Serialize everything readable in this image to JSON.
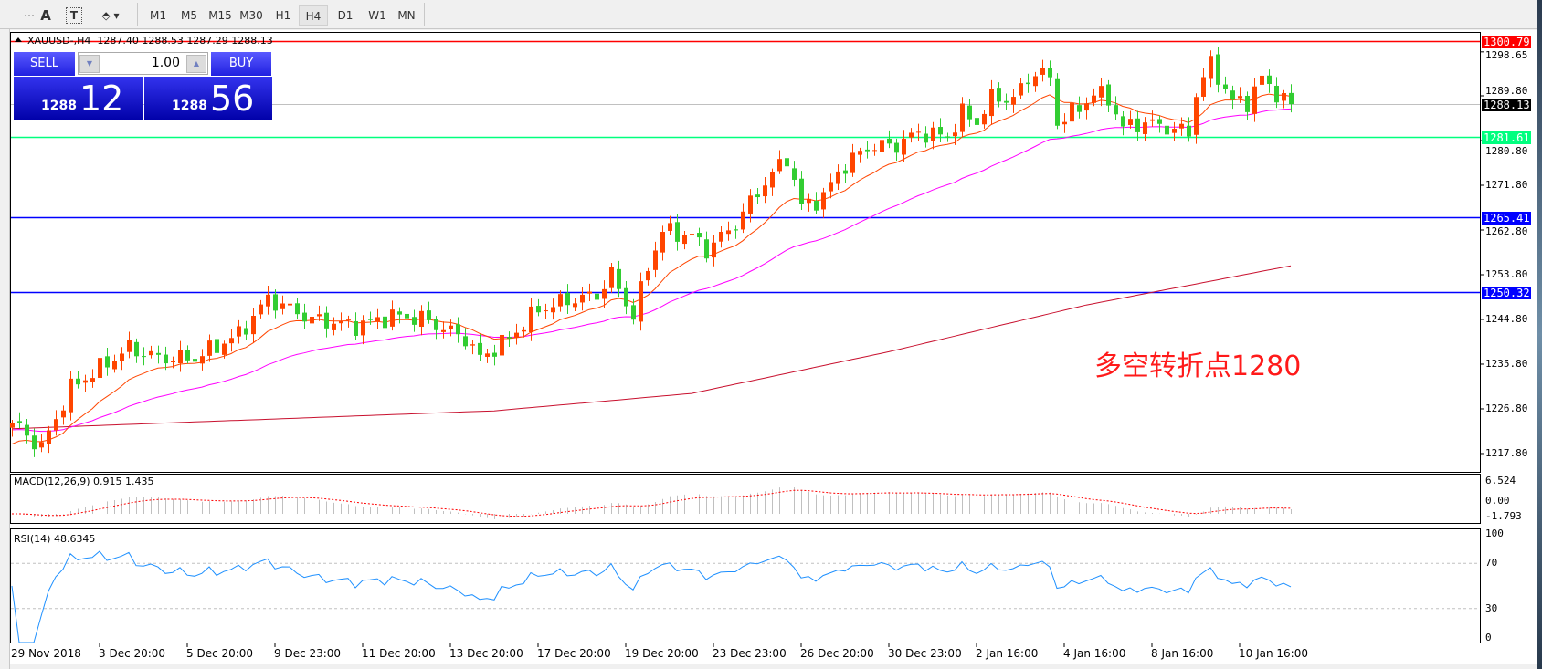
{
  "toolbar": {
    "icons": [
      "grid-fixed-icon",
      "text-icon",
      "text-label-icon",
      "arrows-dropdown-icon"
    ],
    "icon_glyphs": [
      "⋯",
      "A",
      "T",
      "⬘"
    ],
    "timeframes": [
      "M1",
      "M5",
      "M15",
      "M30",
      "H1",
      "H4",
      "D1",
      "W1",
      "MN"
    ],
    "selected_timeframe": "H4"
  },
  "chart": {
    "title": "XAUUSD-,H4  1287.40 1288.53 1287.29 1288.13",
    "trade_panel": {
      "sell_label": "SELL",
      "buy_label": "BUY",
      "lot": "1.00",
      "sell_price_big": "12",
      "sell_price_small": "1288",
      "buy_price_big": "56",
      "buy_price_small": "1288"
    },
    "annotation": "多空转折点1280",
    "colors": {
      "bull": "#ff4500",
      "bear": "#32cd32",
      "ma_fast": "#ff4500",
      "ma_mid": "#ff00ff",
      "ma_slow": "#c8102e",
      "macd_hist": "#c0c0c0",
      "macd_signal": "#ff0000",
      "rsi": "#1e90ff"
    }
  },
  "price_axis": [
    "1298.65",
    "1289.80",
    "1280.80",
    "1271.80",
    "1262.80",
    "1253.80",
    "1244.80",
    "1235.80",
    "1226.80",
    "1217.80"
  ],
  "price_lines": [
    {
      "price": 1300.79,
      "label": "1300.79",
      "color": "#ff0000"
    },
    {
      "price": 1288.13,
      "label": "1288.13",
      "color": "#000000",
      "line_color": "#c0c0c0"
    },
    {
      "price": 1281.61,
      "label": "1281.61",
      "color": "#00ff7f"
    },
    {
      "price": 1265.41,
      "label": "1265.41",
      "color": "#0000ff"
    },
    {
      "price": 1250.32,
      "label": "1250.32",
      "color": "#0000ff"
    }
  ],
  "time_axis": [
    "29 Nov 2018",
    "3 Dec 20:00",
    "5 Dec 20:00",
    "9 Dec 23:00",
    "11 Dec 20:00",
    "13 Dec 20:00",
    "17 Dec 20:00",
    "19 Dec 20:00",
    "23 Dec 23:00",
    "26 Dec 20:00",
    "30 Dec 23:00",
    "2 Jan 16:00",
    "4 Jan 16:00",
    "8 Jan 16:00",
    "10 Jan 16:00"
  ],
  "macd": {
    "label": "MACD(12,26,9) 0.915 1.435",
    "axis": [
      "6.524",
      "0.00",
      "-1.793"
    ],
    "range": [
      -1.793,
      6.524
    ]
  },
  "rsi": {
    "label": "RSI(14) 48.6345",
    "axis": [
      "100",
      "70",
      "30",
      "0"
    ],
    "levels": [
      70,
      30
    ]
  },
  "chart_data": {
    "type": "candlestick",
    "bars": 176,
    "y_range": [
      1213.5,
      1302.5
    ],
    "close_path": [
      [
        0,
        1224
      ],
      [
        4,
        1219
      ],
      [
        8,
        1231
      ],
      [
        16,
        1239
      ],
      [
        20,
        1237
      ],
      [
        25,
        1237
      ],
      [
        31,
        1241.8
      ],
      [
        35,
        1249
      ],
      [
        41,
        1244.8
      ],
      [
        47,
        1243.5
      ],
      [
        52,
        1245.5
      ],
      [
        56,
        1245
      ],
      [
        62,
        1241
      ],
      [
        64,
        1237
      ],
      [
        68,
        1241
      ],
      [
        72,
        1246.8
      ],
      [
        76,
        1248.6
      ],
      [
        80,
        1249.7
      ],
      [
        82,
        1253.8
      ],
      [
        85,
        1245.4
      ],
      [
        87,
        1255.6
      ],
      [
        89,
        1262.6
      ],
      [
        93,
        1261.6
      ],
      [
        95,
        1258.8
      ],
      [
        99,
        1264
      ],
      [
        102,
        1270.5
      ],
      [
        106,
        1277.5
      ],
      [
        108,
        1267.6
      ],
      [
        111,
        1269.4
      ],
      [
        113,
        1274.5
      ],
      [
        117,
        1279.5
      ],
      [
        121,
        1279.9
      ],
      [
        124,
        1282.4
      ],
      [
        128,
        1281.6
      ],
      [
        130,
        1286.3
      ],
      [
        132,
        1284.5
      ],
      [
        134,
        1289.3
      ],
      [
        137,
        1289.3
      ],
      [
        140,
        1294.8
      ],
      [
        142,
        1293.3
      ],
      [
        143,
        1284.5
      ],
      [
        146,
        1287.3
      ],
      [
        148,
        1290.3
      ],
      [
        150,
        1289.3
      ],
      [
        152,
        1283.4
      ],
      [
        155,
        1284.5
      ],
      [
        158,
        1283.4
      ],
      [
        161,
        1282.4
      ],
      [
        162,
        1290.3
      ],
      [
        164,
        1296.3
      ],
      [
        167,
        1288.6
      ],
      [
        169,
        1288.6
      ],
      [
        171,
        1293.3
      ],
      [
        173,
        1290.3
      ],
      [
        175,
        1288.13
      ]
    ],
    "slow_ma_path": [
      [
        0,
        1222.8
      ],
      [
        66,
        1226.4
      ],
      [
        93,
        1229.9
      ],
      [
        120,
        1238.3
      ],
      [
        147,
        1247.7
      ],
      [
        175,
        1255.6
      ]
    ]
  }
}
